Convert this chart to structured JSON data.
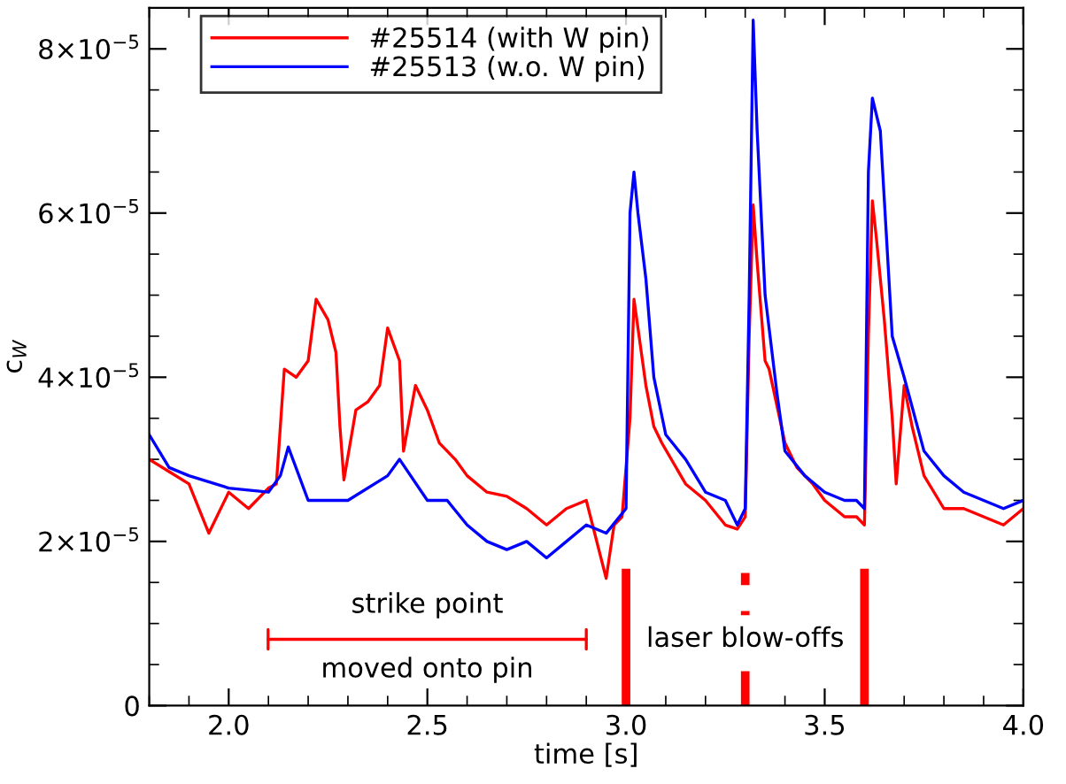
{
  "chart_data": {
    "type": "line",
    "xlabel": "time [s]",
    "ylabel": "c$_{W}$",
    "xlim": [
      1.8,
      4.0
    ],
    "xticks": [
      {
        "value": 2.0,
        "label": "2.0"
      },
      {
        "value": 2.5,
        "label": "2.5"
      },
      {
        "value": 3.0,
        "label": "3.0"
      },
      {
        "value": 3.5,
        "label": "3.5"
      },
      {
        "value": 4.0,
        "label": "4.0"
      }
    ],
    "ylim": [
      0,
      8.5e-05
    ],
    "yticks": [
      0,
      {
        "value": 2e-05,
        "label": "2×10$^{−5}$"
      },
      {
        "value": 4e-05,
        "label": "4×10$^{−5}$"
      },
      {
        "value": 6e-05,
        "label": "6×10$^{−5}$"
      },
      {
        "value": 8e-05,
        "label": "8×10$^{−5}$"
      }
    ],
    "legend": "top left",
    "grid": false,
    "line_style": "solid",
    "marker": "none",
    "series": [
      {
        "name": "#25514 (with W pin)",
        "color": "#ff0000",
        "x": [
          1.8,
          1.85,
          1.9,
          1.95,
          2.0,
          2.05,
          2.1,
          2.12,
          2.13,
          2.14,
          2.17,
          2.2,
          2.22,
          2.25,
          2.27,
          2.28,
          2.29,
          2.32,
          2.35,
          2.38,
          2.4,
          2.43,
          2.44,
          2.47,
          2.5,
          2.53,
          2.57,
          2.6,
          2.65,
          2.7,
          2.75,
          2.8,
          2.85,
          2.9,
          2.95,
          2.97,
          2.99,
          3.01,
          3.02,
          3.03,
          3.05,
          3.07,
          3.09,
          3.15,
          3.2,
          3.25,
          3.28,
          3.3,
          3.31,
          3.32,
          3.33,
          3.35,
          3.36,
          3.4,
          3.43,
          3.47,
          3.5,
          3.55,
          3.58,
          3.6,
          3.61,
          3.62,
          3.63,
          3.65,
          3.67,
          3.68,
          3.7,
          3.72,
          3.75,
          3.8,
          3.85,
          3.9,
          3.95,
          4.0
        ],
        "values": [
          3e-05,
          2.85e-05,
          2.7e-05,
          2.1e-05,
          2.6e-05,
          2.4e-05,
          2.65e-05,
          2.7e-05,
          3.4e-05,
          4.1e-05,
          4e-05,
          4.2e-05,
          4.95e-05,
          4.7e-05,
          4.3e-05,
          3.4e-05,
          2.75e-05,
          3.6e-05,
          3.7e-05,
          3.9e-05,
          4.6e-05,
          4.2e-05,
          3.1e-05,
          3.9e-05,
          3.6e-05,
          3.2e-05,
          3e-05,
          2.8e-05,
          2.6e-05,
          2.55e-05,
          2.4e-05,
          2.2e-05,
          2.4e-05,
          2.5e-05,
          1.55e-05,
          2.2e-05,
          2.3e-05,
          3.5e-05,
          4.95e-05,
          4.6e-05,
          3.9e-05,
          3.4e-05,
          3.2e-05,
          2.7e-05,
          2.5e-05,
          2.2e-05,
          2.15e-05,
          2.3e-05,
          4.5e-05,
          6.1e-05,
          5.4e-05,
          4.2e-05,
          4.1e-05,
          3.2e-05,
          2.9e-05,
          2.7e-05,
          2.5e-05,
          2.3e-05,
          2.3e-05,
          2.2e-05,
          4.5e-05,
          6.15e-05,
          5.7e-05,
          4.7e-05,
          3.5e-05,
          2.7e-05,
          3.9e-05,
          3.4e-05,
          2.8e-05,
          2.4e-05,
          2.4e-05,
          2.3e-05,
          2.2e-05,
          2.4e-05
        ]
      },
      {
        "name": "#25513 (w.o. W pin)",
        "color": "#0000ff",
        "x": [
          1.8,
          1.85,
          1.9,
          2.0,
          2.1,
          2.13,
          2.15,
          2.2,
          2.3,
          2.4,
          2.43,
          2.5,
          2.55,
          2.6,
          2.65,
          2.7,
          2.75,
          2.8,
          2.85,
          2.9,
          2.95,
          3.0,
          3.01,
          3.02,
          3.03,
          3.05,
          3.07,
          3.1,
          3.15,
          3.2,
          3.25,
          3.28,
          3.3,
          3.31,
          3.32,
          3.33,
          3.35,
          3.38,
          3.4,
          3.45,
          3.5,
          3.55,
          3.58,
          3.6,
          3.61,
          3.62,
          3.64,
          3.67,
          3.7,
          3.75,
          3.8,
          3.85,
          3.9,
          3.95,
          4.0
        ],
        "values": [
          3.3e-05,
          2.9e-05,
          2.8e-05,
          2.65e-05,
          2.6e-05,
          2.8e-05,
          3.15e-05,
          2.5e-05,
          2.5e-05,
          2.8e-05,
          3e-05,
          2.5e-05,
          2.5e-05,
          2.2e-05,
          2e-05,
          1.9e-05,
          2e-05,
          1.8e-05,
          2e-05,
          2.2e-05,
          2.1e-05,
          2.4e-05,
          6e-05,
          6.5e-05,
          6e-05,
          5.2e-05,
          4e-05,
          3.3e-05,
          3e-05,
          2.6e-05,
          2.5e-05,
          2.2e-05,
          2.4e-05,
          5e-05,
          8.35e-05,
          7e-05,
          5e-05,
          3.8e-05,
          3.1e-05,
          2.8e-05,
          2.6e-05,
          2.5e-05,
          2.5e-05,
          2.4e-05,
          6.5e-05,
          7.4e-05,
          7e-05,
          4.5e-05,
          4e-05,
          3.1e-05,
          2.8e-05,
          2.6e-05,
          2.5e-05,
          2.4e-05,
          2.5e-05
        ]
      }
    ],
    "ref_lines": [
      {
        "axis": "x",
        "value": 3.0,
        "color": "#ff0000",
        "line_style": "solid"
      },
      {
        "axis": "x",
        "value": 3.3,
        "color": "#ff0000",
        "line_style": "dashed"
      },
      {
        "axis": "x",
        "value": 3.6,
        "color": "#ff0000",
        "line_style": "solid"
      }
    ],
    "annotations": [
      "strike point",
      "moved onto pin",
      "laser blow-offs"
    ]
  }
}
